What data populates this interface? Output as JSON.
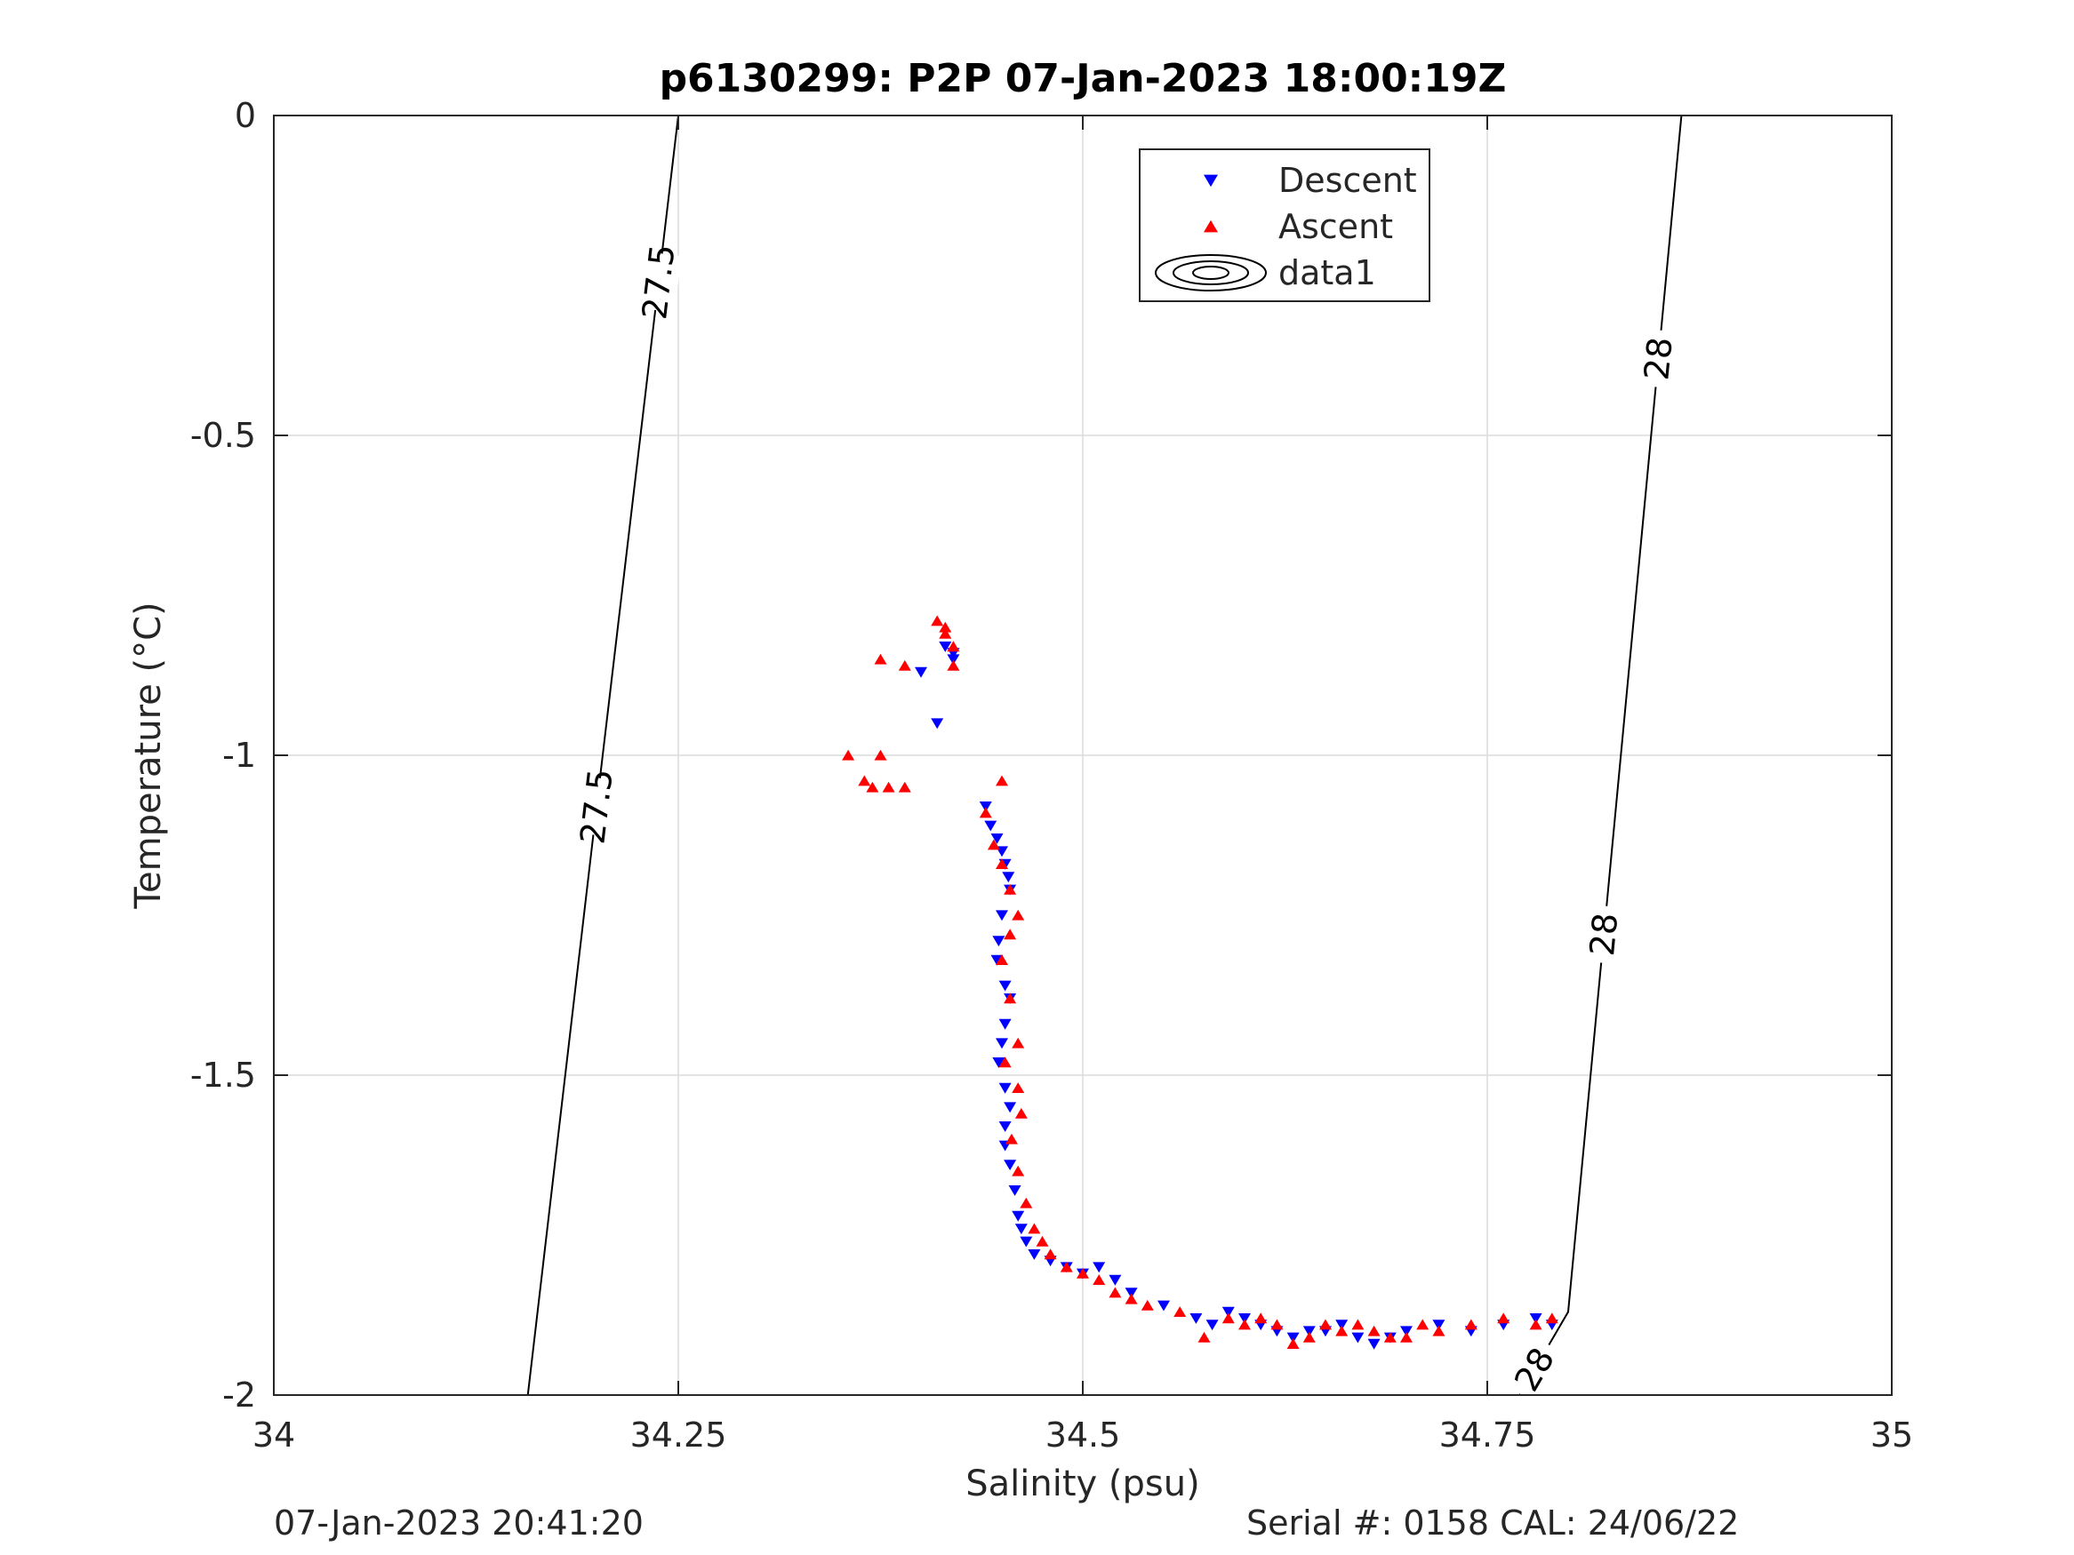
{
  "chart_data": {
    "type": "scatter",
    "title": "p6130299: P2P 07-Jan-2023 18:00:19Z",
    "xlabel": "Salinity (psu)",
    "ylabel": "Temperature (°C)",
    "xlim": [
      34,
      35
    ],
    "ylim": [
      -2,
      0
    ],
    "xticks": [
      34,
      34.25,
      34.5,
      34.75,
      35
    ],
    "xtick_labels": [
      "34",
      "34.25",
      "34.5",
      "34.75",
      "35"
    ],
    "yticks": [
      0,
      -0.5,
      -1,
      -1.5,
      -2
    ],
    "ytick_labels": [
      "0",
      "-0.5",
      "-1",
      "-1.5",
      "-2"
    ],
    "grid": true,
    "legend": {
      "position": "top-center",
      "entries": [
        "Descent",
        "Ascent",
        "data1"
      ]
    },
    "series": [
      {
        "name": "Descent",
        "marker": "triangle-down",
        "color": "#0000ff",
        "x": [
          34.4,
          34.41,
          34.415,
          34.42,
          34.42,
          34.44,
          34.443,
          34.447,
          34.45,
          34.452,
          34.454,
          34.455,
          34.45,
          34.448,
          34.447,
          34.452,
          34.455,
          34.452,
          34.45,
          34.448,
          34.452,
          34.455,
          34.452,
          34.452,
          34.455,
          34.458,
          34.46,
          34.462,
          34.465,
          34.47,
          34.48,
          34.49,
          34.5,
          34.51,
          34.52,
          34.53,
          34.55,
          34.57,
          34.58,
          34.59,
          34.6,
          34.61,
          34.62,
          34.63,
          34.64,
          34.65,
          34.66,
          34.67,
          34.68,
          34.69,
          34.7,
          34.72,
          34.74,
          34.76,
          34.78,
          34.79
        ],
        "y": [
          -0.87,
          -0.95,
          -0.83,
          -0.84,
          -0.85,
          -1.08,
          -1.11,
          -1.13,
          -1.15,
          -1.17,
          -1.19,
          -1.21,
          -1.25,
          -1.29,
          -1.32,
          -1.36,
          -1.38,
          -1.42,
          -1.45,
          -1.48,
          -1.52,
          -1.55,
          -1.58,
          -1.61,
          -1.64,
          -1.68,
          -1.72,
          -1.74,
          -1.76,
          -1.78,
          -1.79,
          -1.8,
          -1.81,
          -1.8,
          -1.82,
          -1.84,
          -1.86,
          -1.88,
          -1.89,
          -1.87,
          -1.88,
          -1.89,
          -1.9,
          -1.91,
          -1.9,
          -1.9,
          -1.89,
          -1.91,
          -1.92,
          -1.91,
          -1.9,
          -1.89,
          -1.9,
          -1.89,
          -1.88,
          -1.89
        ]
      },
      {
        "name": "Ascent",
        "marker": "triangle-up",
        "color": "#ff0000",
        "x": [
          34.355,
          34.365,
          34.37,
          34.375,
          34.38,
          34.39,
          34.375,
          34.39,
          34.41,
          34.415,
          34.42,
          34.42,
          34.415,
          34.45,
          34.44,
          34.445,
          34.45,
          34.455,
          34.46,
          34.455,
          34.45,
          34.455,
          34.46,
          34.452,
          34.46,
          34.462,
          34.456,
          34.46,
          34.465,
          34.47,
          34.475,
          34.48,
          34.49,
          34.5,
          34.51,
          34.52,
          34.53,
          34.54,
          34.56,
          34.575,
          34.59,
          34.6,
          34.61,
          34.62,
          34.63,
          34.64,
          34.65,
          34.66,
          34.67,
          34.68,
          34.69,
          34.7,
          34.71,
          34.72,
          34.74,
          34.76,
          34.78,
          34.79
        ],
        "y": [
          -1.0,
          -1.04,
          -1.05,
          -1.0,
          -1.05,
          -1.05,
          -0.85,
          -0.86,
          -0.79,
          -0.8,
          -0.83,
          -0.86,
          -0.81,
          -1.04,
          -1.09,
          -1.14,
          -1.17,
          -1.21,
          -1.25,
          -1.28,
          -1.32,
          -1.38,
          -1.45,
          -1.48,
          -1.52,
          -1.56,
          -1.6,
          -1.65,
          -1.7,
          -1.74,
          -1.76,
          -1.78,
          -1.8,
          -1.81,
          -1.82,
          -1.84,
          -1.85,
          -1.86,
          -1.87,
          -1.91,
          -1.88,
          -1.89,
          -1.88,
          -1.89,
          -1.92,
          -1.91,
          -1.89,
          -1.9,
          -1.89,
          -1.9,
          -1.91,
          -1.91,
          -1.89,
          -1.9,
          -1.89,
          -1.88,
          -1.89,
          -1.88
        ]
      }
    ],
    "contours": [
      {
        "label": "27.5",
        "x": [
          34.157,
          34.2,
          34.25
        ],
        "y": [
          -2,
          -1.07,
          0
        ]
      },
      {
        "label": "28",
        "x": [
          34.77,
          34.8,
          34.87
        ],
        "y": [
          -2,
          -1.87,
          0
        ]
      }
    ]
  },
  "footer": {
    "timestamp": "07-Jan-2023 20:41:20",
    "serial": "Serial #: 0158  CAL: 24/06/22"
  }
}
